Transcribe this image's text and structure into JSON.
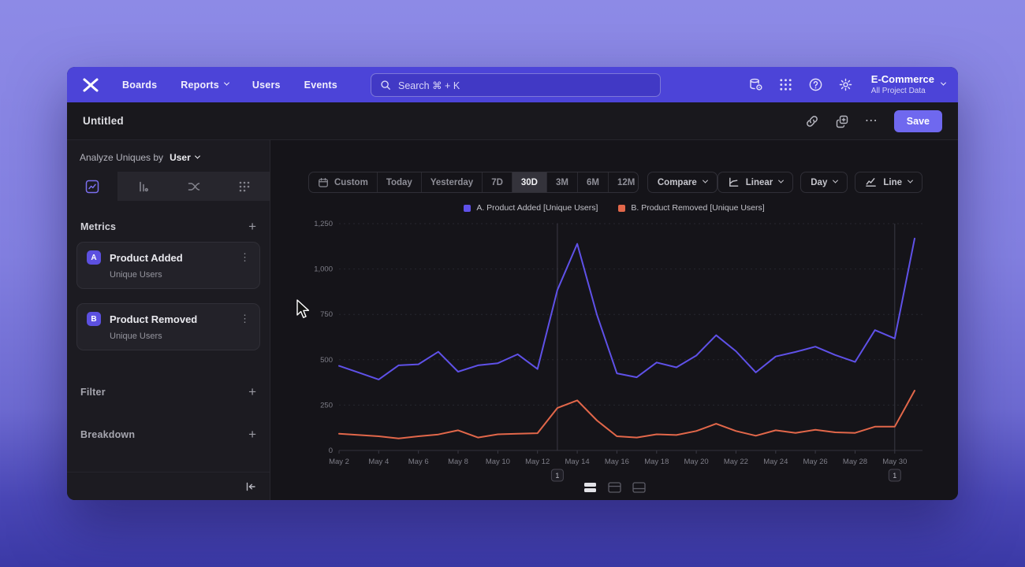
{
  "navbar": {
    "links": [
      {
        "label": "Boards"
      },
      {
        "label": "Reports"
      },
      {
        "label": "Users"
      },
      {
        "label": "Events"
      }
    ],
    "search_placeholder": "Search  ⌘ + K",
    "project": {
      "name": "E-Commerce",
      "scope": "All Project Data"
    }
  },
  "titlebar": {
    "title": "Untitled",
    "save_label": "Save",
    "more_glyph": "⋯"
  },
  "sidebar": {
    "analyze_prefix": "Analyze Uniques by",
    "analyze_value": "User",
    "metrics_label": "Metrics",
    "plus": "+",
    "metrics": [
      {
        "badge": "A",
        "name": "Product Added",
        "sub": "Unique Users",
        "menu_glyph": "⋮"
      },
      {
        "badge": "B",
        "name": "Product Removed",
        "sub": "Unique Users",
        "menu_glyph": "⋮"
      }
    ],
    "filter_label": "Filter",
    "breakdown_label": "Breakdown"
  },
  "toolbar": {
    "ranges": [
      "Custom",
      "Today",
      "Yesterday",
      "7D",
      "30D",
      "3M",
      "6M",
      "12M"
    ],
    "active_range": "30D",
    "compare_label": "Compare",
    "scale_label": "Linear",
    "interval_label": "Day",
    "chart_type_label": "Line"
  },
  "chart_data": {
    "type": "line",
    "title": "",
    "xlabel": "",
    "ylabel": "",
    "ylim": [
      0,
      1250
    ],
    "yticks": [
      0,
      250,
      500,
      750,
      1000,
      1250
    ],
    "ytick_labels": [
      "0",
      "250",
      "500",
      "750",
      "1,000",
      "1,250"
    ],
    "x": [
      "May 2",
      "May 3",
      "May 4",
      "May 5",
      "May 6",
      "May 7",
      "May 8",
      "May 9",
      "May 10",
      "May 11",
      "May 12",
      "May 13",
      "May 14",
      "May 15",
      "May 16",
      "May 17",
      "May 18",
      "May 19",
      "May 20",
      "May 21",
      "May 22",
      "May 23",
      "May 24",
      "May 25",
      "May 26",
      "May 27",
      "May 28",
      "May 29",
      "May 30",
      "May 31"
    ],
    "x_tick_every": 2,
    "grid": "horizontal-dashed",
    "legend_position": "top-center",
    "series": [
      {
        "name": "A. Product Added [Unique Users]",
        "color": "#5f51e8",
        "values": [
          466,
          429,
          391,
          469,
          475,
          544,
          434,
          469,
          481,
          530,
          449,
          884,
          1139,
          746,
          425,
          403,
          485,
          458,
          523,
          635,
          547,
          430,
          518,
          543,
          572,
          526,
          488,
          663,
          617,
          1168
        ]
      },
      {
        "name": "B. Product Removed [Unique Users]",
        "color": "#e2674a",
        "values": [
          92,
          85,
          78,
          66,
          78,
          88,
          111,
          71,
          89,
          92,
          95,
          234,
          276,
          165,
          78,
          71,
          89,
          85,
          107,
          147,
          107,
          81,
          111,
          97,
          114,
          100,
          97,
          131,
          131,
          330
        ]
      }
    ],
    "annotations": [
      {
        "x_index": 11,
        "x_label": "May 13",
        "label": "1"
      },
      {
        "x_index": 28,
        "x_label": "May 30",
        "label": "1"
      }
    ]
  }
}
